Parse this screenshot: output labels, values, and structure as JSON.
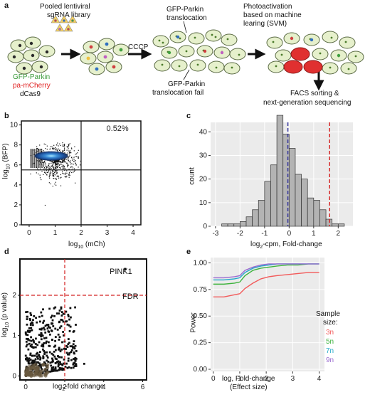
{
  "panels": {
    "a": "a",
    "b": "b",
    "c": "c",
    "d": "d",
    "e": "e"
  },
  "schematic": {
    "library_line1": "Pooled lentiviral",
    "library_line2": "sgRNA library",
    "cccp": "CCCP",
    "translocation_line1": "GFP-Parkin",
    "translocation_line2": "translocation",
    "photo_line1": "Photoactivation",
    "photo_line2": "based on machine",
    "photo_line3": "learing (SVM)",
    "fail_line1": "GFP-Parkin",
    "fail_line2": "translocation fail",
    "facs_line1": "FACS sorting &",
    "facs_line2": "next-generation sequencing",
    "legend": [
      {
        "text": "GFP-Parkin",
        "color": "#3a9a3a"
      },
      {
        "text": "pa-mCherry",
        "color": "#e02020"
      },
      {
        "text": "dCas9",
        "color": "#111111"
      }
    ]
  },
  "chart_data": [
    {
      "panel": "b",
      "type": "scatter",
      "xlabel_main": "log",
      "xlabel_sub": "10",
      "xlabel_rest": " (mCh)",
      "ylabel_main": "log",
      "ylabel_sub": "10",
      "ylabel_rest": " (BFP)",
      "xlim": [
        -0.3,
        4.3
      ],
      "ylim": [
        0,
        10.4
      ],
      "xticks": [
        "0",
        "1",
        "2",
        "3",
        "4"
      ],
      "yticks": [
        "0",
        "2",
        "4",
        "6",
        "8",
        "10"
      ],
      "gate_x": 2,
      "gate_y": 5.5,
      "gate_label": "0.52%"
    },
    {
      "panel": "c",
      "type": "bar",
      "xlabel_main": "log",
      "xlabel_sub": "2",
      "xlabel_rest": "-cpm, Fold-change",
      "ylabel": "count",
      "xlim": [
        -3.2,
        2.6
      ],
      "ylim": [
        0,
        44
      ],
      "bin_width": 0.25,
      "bin_starts": [
        -2.75,
        -2.5,
        -2.25,
        -2.0,
        -1.75,
        -1.5,
        -1.25,
        -1.0,
        -0.75,
        -0.5,
        -0.25,
        0.0,
        0.25,
        0.5,
        0.75,
        1.0,
        1.25,
        1.5,
        1.75,
        2.0
      ],
      "values": [
        1,
        1,
        1,
        2,
        4,
        7,
        11,
        19,
        26,
        47,
        39,
        33,
        22,
        20,
        12,
        11,
        7,
        3,
        1,
        1
      ],
      "xticks": [
        -3,
        -2,
        -1,
        0,
        1,
        2
      ],
      "yticks": [
        0,
        10,
        20,
        30,
        40
      ],
      "mean_line": -0.05,
      "threshold_line": 1.65
    },
    {
      "panel": "d",
      "type": "scatter",
      "xlabel_main": "log",
      "xlabel_sub": "2",
      "xlabel_rest": "-fold change",
      "ylabel_main": "log",
      "ylabel_sub": "10",
      "ylabel_rest": " (p value)",
      "xlim": [
        -0.3,
        6.2
      ],
      "ylim": [
        -0.1,
        2.9
      ],
      "xticks": [
        0,
        2,
        4,
        6
      ],
      "yticks": [
        0,
        1,
        2
      ],
      "fdr_threshold": 2,
      "fold_threshold": 2,
      "fdr_label": "FDR",
      "highlight": {
        "label": "PINK1",
        "x": 5.1,
        "y": 2.65
      }
    },
    {
      "panel": "e",
      "type": "line",
      "xlabel_line1": "log, Fold-change",
      "xlabel_line2": "(Effect size)",
      "ylabel": "Power",
      "xlim": [
        -0.1,
        4.2
      ],
      "ylim": [
        -0.02,
        1.05
      ],
      "xticks": [
        0,
        1,
        2,
        3,
        4
      ],
      "yticks": [
        "0.00",
        "0.25",
        "0.50",
        "0.75",
        "1.00"
      ],
      "legend_title_line1": "Sample",
      "legend_title_line2": "size:",
      "x": [
        0,
        0.4,
        0.8,
        1.0,
        1.2,
        1.5,
        1.8,
        2.1,
        2.4,
        2.8,
        3.2,
        3.6,
        4.0
      ],
      "series": [
        {
          "name": "3n",
          "color": "#f25a5a",
          "values": [
            0.68,
            0.68,
            0.7,
            0.71,
            0.76,
            0.81,
            0.85,
            0.87,
            0.88,
            0.89,
            0.9,
            0.91,
            0.91
          ]
        },
        {
          "name": "5n",
          "color": "#3db33d",
          "values": [
            0.8,
            0.8,
            0.81,
            0.82,
            0.88,
            0.93,
            0.95,
            0.96,
            0.97,
            0.98,
            0.98,
            0.99,
            0.99
          ]
        },
        {
          "name": "7n",
          "color": "#22a8c8",
          "values": [
            0.84,
            0.84,
            0.85,
            0.86,
            0.91,
            0.95,
            0.97,
            0.98,
            0.99,
            0.99,
            0.99,
            0.99,
            0.99
          ]
        },
        {
          "name": "9n",
          "color": "#9a6ad0",
          "values": [
            0.86,
            0.86,
            0.87,
            0.88,
            0.93,
            0.96,
            0.98,
            0.99,
            0.99,
            0.99,
            0.99,
            0.99,
            0.99
          ]
        }
      ]
    }
  ]
}
